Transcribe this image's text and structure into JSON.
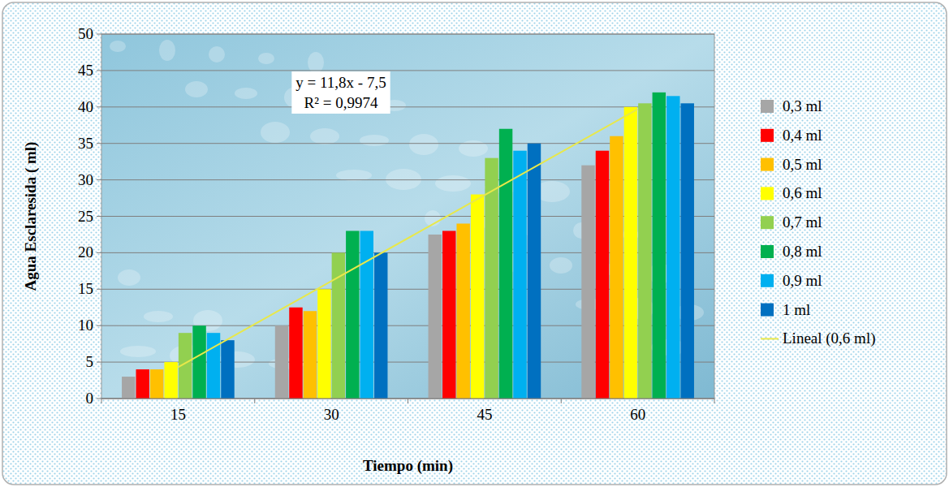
{
  "chart_data": {
    "type": "bar",
    "x_label": "Tiempo (min)",
    "y_label": "Agua Esclaresida ( ml)",
    "categories": [
      "15",
      "30",
      "45",
      "60"
    ],
    "series": [
      {
        "name": "0,3 ml",
        "color": "#a6a6a6",
        "values": [
          3,
          10,
          22.5,
          32
        ]
      },
      {
        "name": "0,4 ml",
        "color": "#ff0000",
        "values": [
          4,
          12.5,
          23,
          34
        ]
      },
      {
        "name": "0,5 ml",
        "color": "#ffc000",
        "values": [
          4,
          12,
          24,
          36
        ]
      },
      {
        "name": "0,6 ml",
        "color": "#ffff00",
        "values": [
          5,
          15,
          28,
          40
        ]
      },
      {
        "name": "0,7 ml",
        "color": "#92d050",
        "values": [
          9,
          20,
          33,
          40.5
        ]
      },
      {
        "name": "0,8 ml",
        "color": "#00b050",
        "values": [
          10,
          23,
          37,
          42
        ]
      },
      {
        "name": "0,9 ml",
        "color": "#00b0f0",
        "values": [
          9,
          23,
          34,
          41.5
        ]
      },
      {
        "name": "1 ml",
        "color": "#0070c0",
        "values": [
          8,
          20,
          35,
          40.5
        ]
      },
      {
        "name": "Lineal (0,6 ml)",
        "type": "line",
        "color": "#e8e84a",
        "values": [
          4.3,
          16.1,
          27.9,
          39.7
        ]
      }
    ],
    "annotations": [
      "y = 11,8x - 7,5",
      "R² = 0,9974"
    ],
    "ylim": [
      0,
      50
    ],
    "yticks": [
      0,
      5,
      10,
      15,
      20,
      25,
      30,
      35,
      40,
      45,
      50
    ],
    "grid": true,
    "legend": "right"
  }
}
